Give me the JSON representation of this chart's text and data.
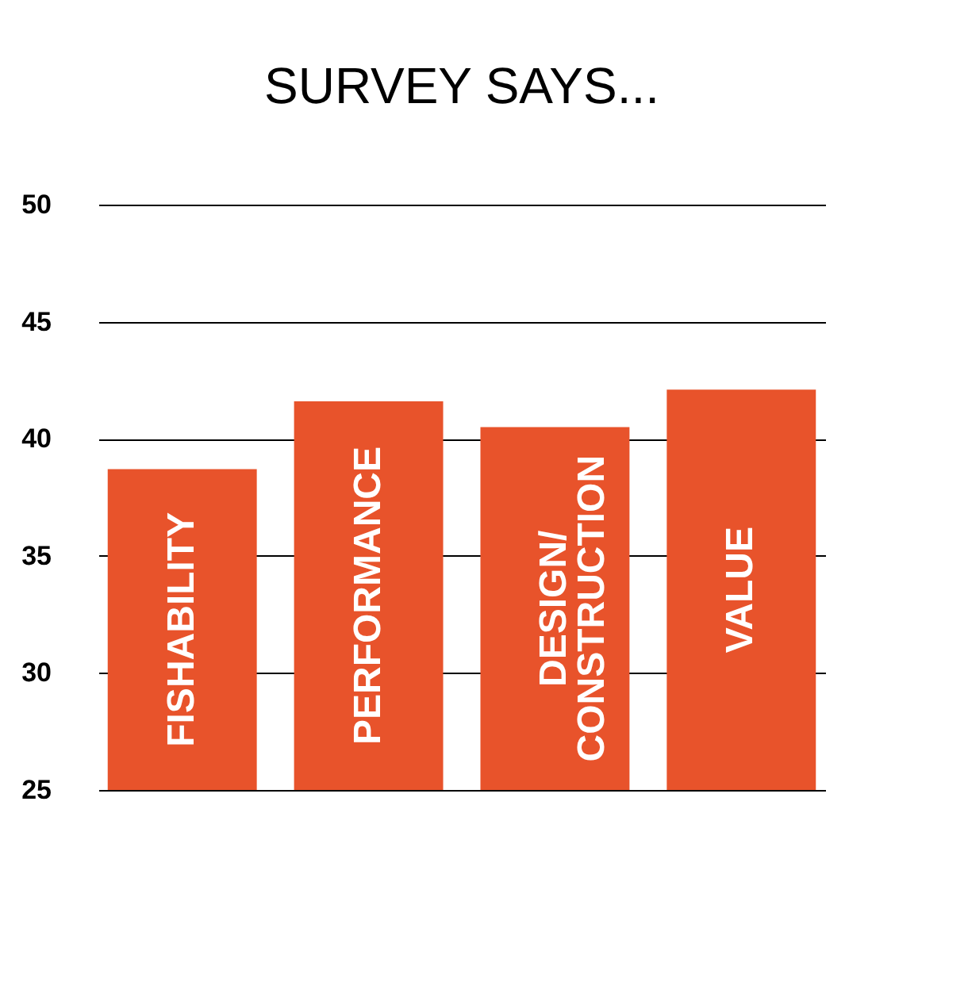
{
  "chart_data": {
    "type": "bar",
    "title": "SURVEY SAYS...",
    "categories": [
      "FISHABILITY",
      "PERFORMANCE",
      "DESIGN/\nCONSTRUCTION",
      "VALUE"
    ],
    "values": [
      38.7,
      41.6,
      40.5,
      42.1
    ],
    "color": "#e8532b",
    "ylim": [
      25,
      50
    ],
    "yticks": [
      25,
      30,
      35,
      40,
      45,
      50
    ],
    "grid": "y",
    "tick_labels": "y"
  }
}
